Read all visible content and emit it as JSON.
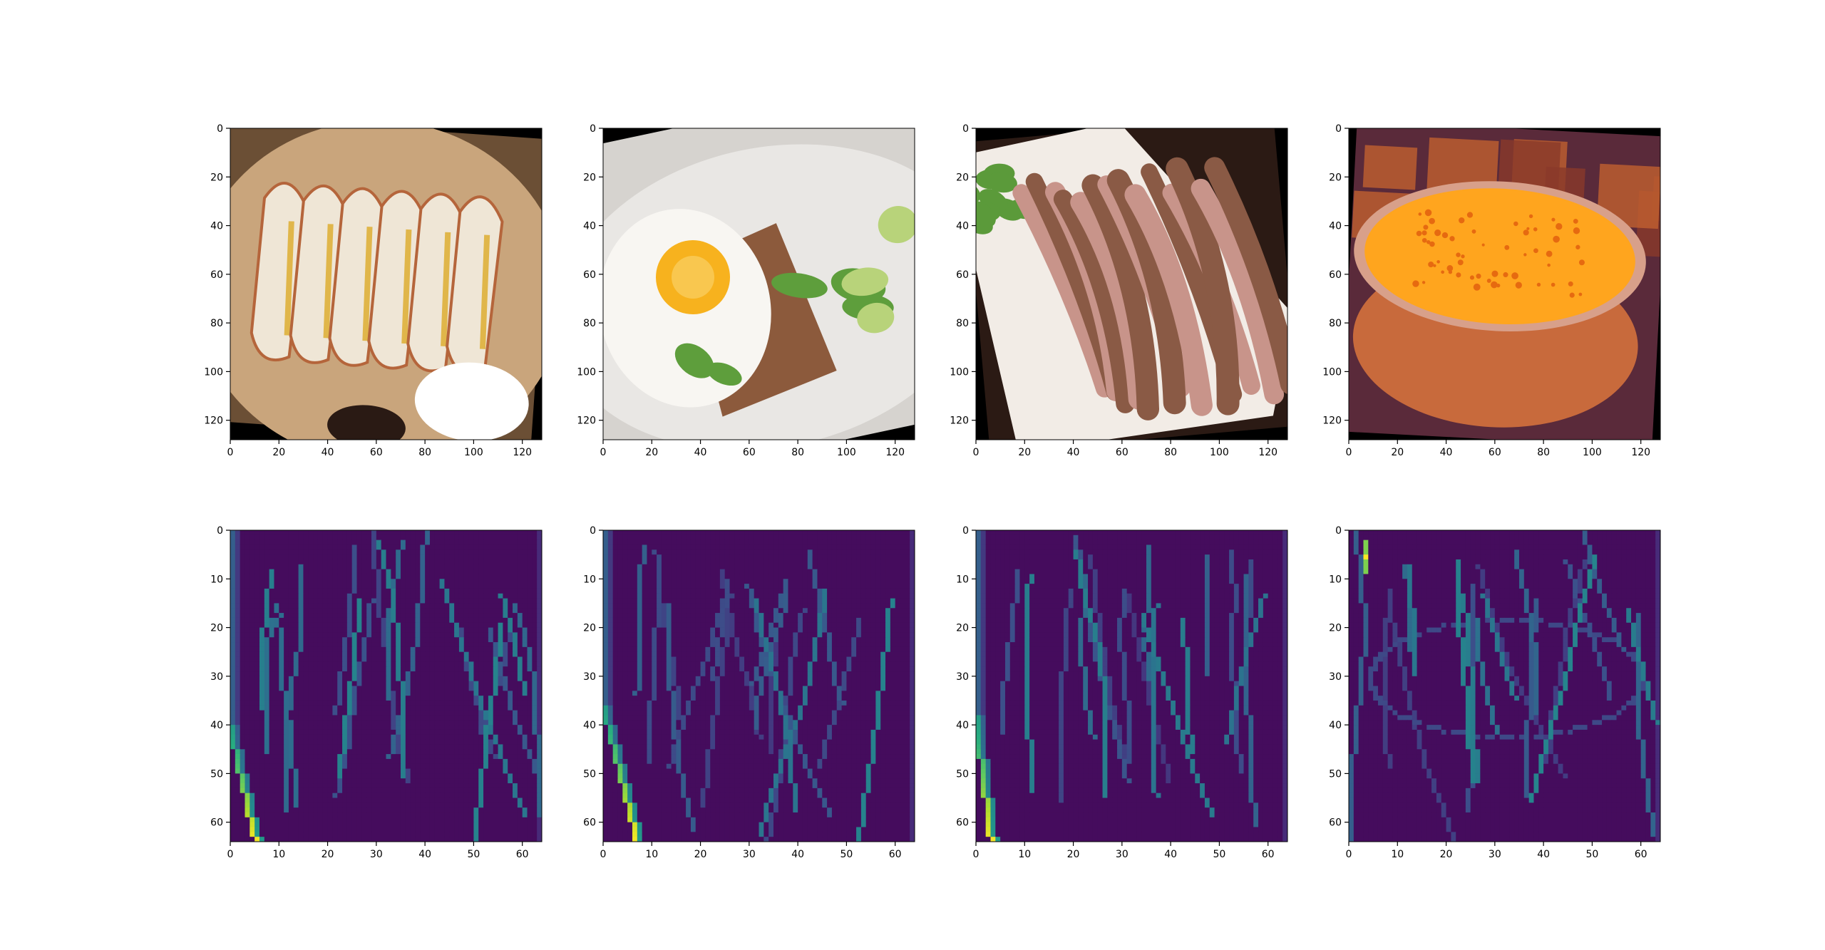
{
  "figure": {
    "background": "#ffffff",
    "layout": "2 rows x 4 columns of image panels",
    "top_row": "input food photos (RGB, 128x128, rotated with black fill)",
    "bottom_row": "single-channel feature maps (64x64, viridis colormap)"
  },
  "chart_data": [
    {
      "type": "heatmap",
      "row": 0,
      "col": 0,
      "image": "food-photo-quesadilla",
      "xlim": [
        0,
        128
      ],
      "ylim": [
        128,
        0
      ],
      "xticks": [
        0,
        20,
        40,
        60,
        80,
        100,
        120
      ],
      "yticks": [
        0,
        20,
        40,
        60,
        80,
        100,
        120
      ],
      "palette": [
        "#6b4f35",
        "#c9a57c",
        "#efe6d6",
        "#e0b64a",
        "#b5653b",
        "#ffffff"
      ]
    },
    {
      "type": "heatmap",
      "row": 0,
      "col": 1,
      "image": "food-photo-egg-toast-salad",
      "xlim": [
        0,
        128
      ],
      "ylim": [
        128,
        0
      ],
      "xticks": [
        0,
        20,
        40,
        60,
        80,
        100,
        120
      ],
      "yticks": [
        0,
        20,
        40,
        60,
        80,
        100,
        120
      ],
      "palette": [
        "#e9e7e4",
        "#f7b21e",
        "#8c5a3c",
        "#5e9e3c",
        "#b8d37a",
        "#000000"
      ]
    },
    {
      "type": "heatmap",
      "row": 0,
      "col": 2,
      "image": "food-photo-fried-squid",
      "xlim": [
        0,
        128
      ],
      "ylim": [
        128,
        0
      ],
      "xticks": [
        0,
        20,
        40,
        60,
        80,
        100,
        120
      ],
      "yticks": [
        0,
        20,
        40,
        60,
        80,
        100,
        120
      ],
      "palette": [
        "#f2ece6",
        "#8a5a45",
        "#c8948a",
        "#5b9a3a",
        "#2b1a14",
        "#000000"
      ]
    },
    {
      "type": "heatmap",
      "row": 0,
      "col": 3,
      "image": "food-photo-orange-soup",
      "xlim": [
        0,
        128
      ],
      "ylim": [
        128,
        0
      ],
      "xticks": [
        0,
        20,
        40,
        60,
        80,
        100,
        120
      ],
      "yticks": [
        0,
        20,
        40,
        60,
        80,
        100,
        120
      ],
      "palette": [
        "#ffa51e",
        "#e66a10",
        "#c86a3c",
        "#5a2a3a",
        "#d8a08a",
        "#000000"
      ]
    },
    {
      "type": "heatmap",
      "row": 1,
      "col": 0,
      "image": "feature-map-1",
      "xlim": [
        0,
        64
      ],
      "ylim": [
        64,
        0
      ],
      "xticks": [
        0,
        10,
        20,
        30,
        40,
        50,
        60
      ],
      "yticks": [
        0,
        10,
        20,
        30,
        40,
        50,
        60
      ],
      "colormap": "viridis",
      "notes": "bright yellow diagonal edge near x=0-5, y=40-64"
    },
    {
      "type": "heatmap",
      "row": 1,
      "col": 1,
      "image": "feature-map-2",
      "xlim": [
        0,
        64
      ],
      "ylim": [
        64,
        0
      ],
      "xticks": [
        0,
        10,
        20,
        30,
        40,
        50,
        60
      ],
      "yticks": [
        0,
        10,
        20,
        30,
        40,
        50,
        60
      ],
      "colormap": "viridis",
      "notes": "bright yellow diagonal edge near x=0-7, y=35-64"
    },
    {
      "type": "heatmap",
      "row": 1,
      "col": 2,
      "image": "feature-map-3",
      "xlim": [
        0,
        64
      ],
      "ylim": [
        64,
        0
      ],
      "xticks": [
        0,
        10,
        20,
        30,
        40,
        50,
        60
      ],
      "yticks": [
        0,
        10,
        20,
        30,
        40,
        50,
        60
      ],
      "colormap": "viridis",
      "notes": "bright yellow edge near x=0-4, y=38-64"
    },
    {
      "type": "heatmap",
      "row": 1,
      "col": 3,
      "image": "feature-map-4",
      "xlim": [
        0,
        64
      ],
      "ylim": [
        64,
        0
      ],
      "xticks": [
        0,
        10,
        20,
        30,
        40,
        50,
        60
      ],
      "yticks": [
        0,
        10,
        20,
        30,
        40,
        50,
        60
      ],
      "colormap": "viridis",
      "notes": "yellow spot near x=3, y=5; faint bowl outline"
    }
  ],
  "colors": {
    "viridis_low": "#440154",
    "viridis_dark": "#472d7b",
    "viridis_mid": "#2c718e",
    "viridis_teal": "#21918c",
    "viridis_green": "#5ec962",
    "viridis_high": "#fde725"
  }
}
